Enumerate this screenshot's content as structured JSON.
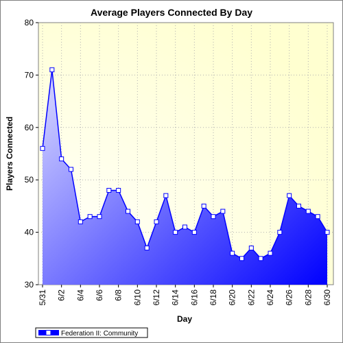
{
  "chart_data": {
    "type": "area",
    "title": "Average Players Connected By Day",
    "xlabel": "Day",
    "ylabel": "Players Connected",
    "ylim": [
      30,
      80
    ],
    "yticks": [
      30,
      40,
      50,
      60,
      70,
      80
    ],
    "grid": true,
    "legend_placement": "bottom-left",
    "x": [
      "5/31",
      "6/1",
      "6/2",
      "6/3",
      "6/4",
      "6/5",
      "6/6",
      "6/7",
      "6/8",
      "6/9",
      "6/10",
      "6/11",
      "6/12",
      "6/13",
      "6/14",
      "6/15",
      "6/16",
      "6/17",
      "6/18",
      "6/19",
      "6/20",
      "6/21",
      "6/22",
      "6/23",
      "6/24",
      "6/25",
      "6/26",
      "6/27",
      "6/28",
      "6/29",
      "6/30"
    ],
    "xtick_labels": [
      "5/31",
      "6/2",
      "6/4",
      "6/6",
      "6/8",
      "6/10",
      "6/12",
      "6/14",
      "6/16",
      "6/18",
      "6/20",
      "6/22",
      "6/24",
      "6/26",
      "6/28",
      "6/30"
    ],
    "series": [
      {
        "name": "Federation II: Community",
        "values": [
          56,
          71,
          54,
          52,
          42,
          43,
          43,
          48,
          48,
          44,
          42,
          37,
          42,
          47,
          40,
          41,
          40,
          45,
          43,
          44,
          36,
          35,
          37,
          35,
          36,
          40,
          47,
          45,
          44,
          43,
          40
        ]
      }
    ],
    "colors": {
      "plot_bg_top": "#ffffd0",
      "plot_bg_corner": "#ffffff",
      "area_light": "#c8c8ff",
      "area_dark": "#0000ff",
      "line": "#0000ff",
      "marker_fill": "#ffffff",
      "grid": "#b0b0b0"
    }
  }
}
